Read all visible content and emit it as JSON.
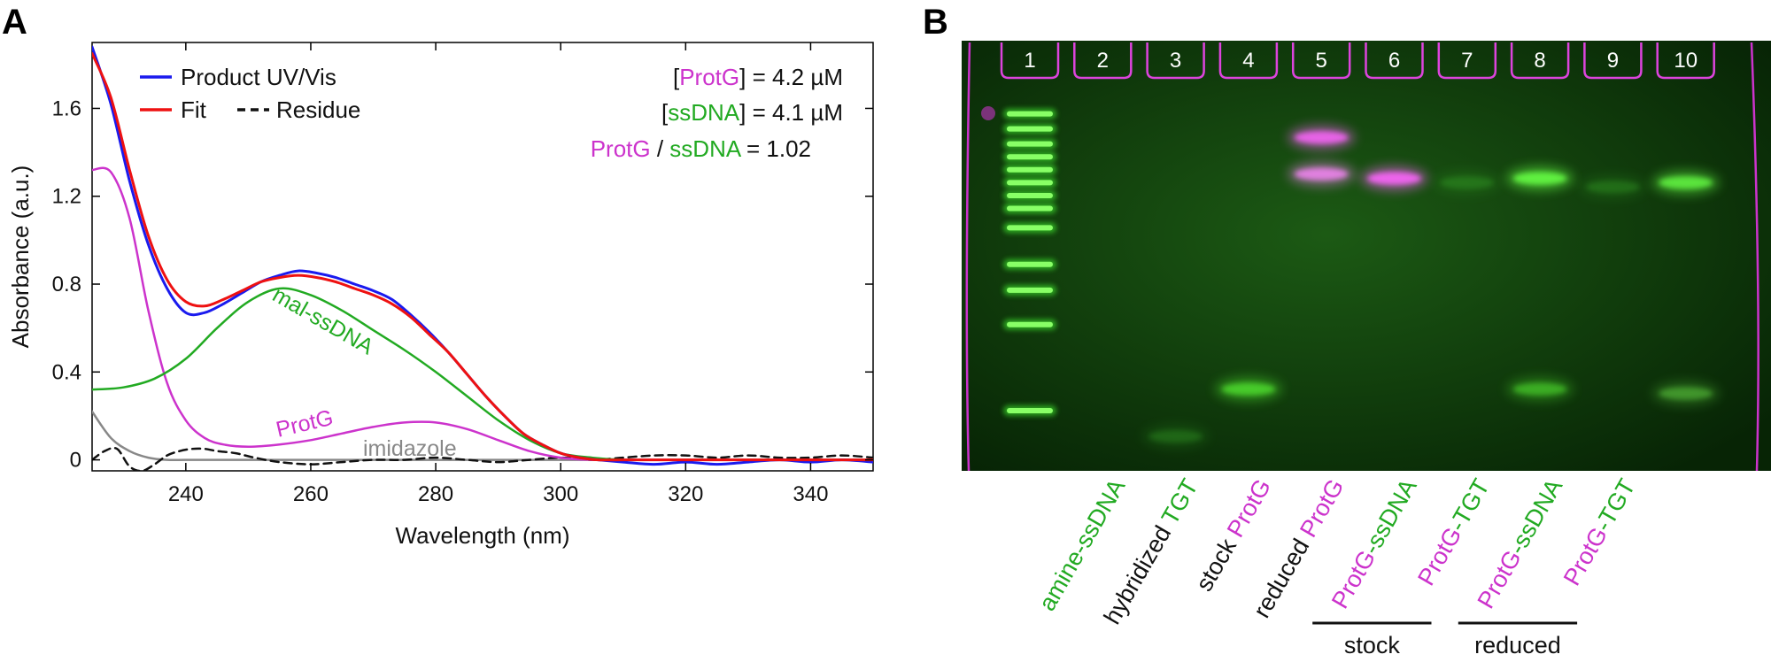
{
  "colors": {
    "magenta": "#cc33cc",
    "green": "#22aa22",
    "blue": "#1a1aee",
    "red": "#ee1111",
    "gray": "#888888",
    "black": "#111111",
    "gel_bg": "#0e3a0a",
    "band_green": "#66ff44",
    "band_magenta": "#ff66ff"
  },
  "panels": {
    "a": "A",
    "b": "B"
  },
  "chart_data": {
    "type": "line",
    "xlabel": "Wavelength (nm)",
    "ylabel": "Absorbance (a.u.)",
    "xlim": [
      225,
      350
    ],
    "ylim": [
      -0.05,
      1.9
    ],
    "xticks": [
      240,
      260,
      280,
      300,
      320,
      340
    ],
    "yticks": [
      0,
      0.4,
      0.8,
      1.2,
      1.6
    ],
    "ytick_labels": [
      "0",
      "0.4",
      "0.8",
      "1.2",
      "1.6"
    ],
    "legend": [
      {
        "label": "Product UV/Vis",
        "color": "#1a1aee",
        "dash": false
      },
      {
        "label": "Fit",
        "color": "#ee1111",
        "dash": false
      },
      {
        "label": "Residue",
        "color": "#111111",
        "dash": true
      }
    ],
    "concentrations": [
      {
        "open": "[",
        "species": "ProtG",
        "close": "] = 4.2 µM",
        "color": "#cc33cc"
      },
      {
        "open": "[",
        "species": "ssDNA",
        "close": "] = 4.1 µM",
        "color": "#22aa22"
      }
    ],
    "ratio": {
      "num": "ProtG",
      "sep": " / ",
      "den": "ssDNA",
      "value": " = 1.02"
    },
    "annotations": {
      "mal_ssdna": "mal-ssDNA",
      "protg": "ProtG",
      "imidazole": "imidazole"
    },
    "series": [
      {
        "name": "Product UV/Vis",
        "color": "#1a1aee",
        "width": 3,
        "dash": false,
        "x": [
          225,
          228,
          231,
          234,
          237,
          240,
          243,
          246,
          249,
          252,
          255,
          258,
          261,
          264,
          267,
          270,
          273,
          276,
          279,
          282,
          285,
          288,
          291,
          294,
          297,
          300,
          303,
          306,
          310,
          315,
          320,
          325,
          330,
          335,
          340,
          345,
          350
        ],
        "y": [
          1.88,
          1.62,
          1.27,
          0.98,
          0.78,
          0.67,
          0.67,
          0.71,
          0.76,
          0.81,
          0.84,
          0.86,
          0.85,
          0.83,
          0.8,
          0.77,
          0.73,
          0.66,
          0.58,
          0.49,
          0.39,
          0.29,
          0.2,
          0.12,
          0.07,
          0.03,
          0.01,
          0.0,
          -0.01,
          -0.02,
          -0.01,
          -0.02,
          -0.01,
          0.0,
          -0.01,
          0.0,
          -0.01
        ]
      },
      {
        "name": "Fit",
        "color": "#ee1111",
        "width": 3,
        "dash": false,
        "x": [
          225,
          228,
          231,
          234,
          237,
          240,
          243,
          246,
          249,
          252,
          255,
          258,
          261,
          264,
          267,
          270,
          273,
          276,
          279,
          282,
          285,
          288,
          291,
          294,
          297,
          300,
          303,
          306,
          310,
          315,
          320,
          325,
          330,
          335,
          340,
          345,
          350
        ],
        "y": [
          1.85,
          1.65,
          1.32,
          1.02,
          0.82,
          0.72,
          0.7,
          0.73,
          0.77,
          0.81,
          0.83,
          0.84,
          0.83,
          0.81,
          0.78,
          0.75,
          0.71,
          0.65,
          0.57,
          0.49,
          0.39,
          0.29,
          0.2,
          0.12,
          0.07,
          0.03,
          0.01,
          0.0,
          0.0,
          0.0,
          0.0,
          0.0,
          0.0,
          0.0,
          0.0,
          0.0,
          0.0
        ]
      },
      {
        "name": "mal-ssDNA",
        "color": "#22aa22",
        "width": 2.5,
        "dash": false,
        "x": [
          225,
          230,
          235,
          240,
          245,
          250,
          255,
          260,
          265,
          270,
          275,
          280,
          285,
          290,
          295,
          300,
          305,
          310,
          320,
          330,
          340,
          350
        ],
        "y": [
          0.32,
          0.33,
          0.37,
          0.46,
          0.6,
          0.72,
          0.78,
          0.75,
          0.68,
          0.59,
          0.5,
          0.4,
          0.29,
          0.18,
          0.09,
          0.03,
          0.01,
          0.0,
          0.0,
          0.0,
          0.0,
          0.0
        ]
      },
      {
        "name": "ProtG",
        "color": "#cc33cc",
        "width": 2.5,
        "dash": false,
        "x": [
          225,
          228,
          231,
          234,
          237,
          240,
          243,
          246,
          250,
          255,
          260,
          265,
          270,
          275,
          280,
          285,
          290,
          295,
          300,
          305,
          310,
          320,
          330,
          340,
          350
        ],
        "y": [
          1.32,
          1.31,
          1.1,
          0.68,
          0.35,
          0.18,
          0.1,
          0.07,
          0.06,
          0.07,
          0.09,
          0.12,
          0.15,
          0.17,
          0.17,
          0.14,
          0.09,
          0.04,
          0.01,
          0.0,
          0.0,
          0.0,
          0.0,
          0.0,
          0.0
        ]
      },
      {
        "name": "imidazole",
        "color": "#888888",
        "width": 2.5,
        "dash": false,
        "x": [
          225,
          228,
          231,
          234,
          237,
          240,
          245,
          250,
          260,
          280,
          300,
          320,
          340,
          350
        ],
        "y": [
          0.22,
          0.1,
          0.04,
          0.01,
          0.0,
          0.0,
          0.0,
          0.0,
          0.0,
          0.0,
          0.0,
          0.0,
          0.0,
          0.0
        ]
      },
      {
        "name": "Residue",
        "color": "#111111",
        "width": 2.5,
        "dash": true,
        "x": [
          225,
          227,
          229,
          231,
          233,
          235,
          237,
          239,
          241,
          243,
          245,
          248,
          251,
          255,
          260,
          265,
          270,
          275,
          280,
          285,
          290,
          295,
          300,
          305,
          310,
          315,
          320,
          325,
          330,
          335,
          340,
          345,
          350
        ],
        "y": [
          0.0,
          0.04,
          0.05,
          -0.03,
          -0.05,
          -0.02,
          0.02,
          0.04,
          0.05,
          0.05,
          0.04,
          0.03,
          0.01,
          -0.01,
          -0.02,
          -0.01,
          0.0,
          0.0,
          0.01,
          0.0,
          -0.01,
          0.0,
          0.01,
          0.0,
          0.01,
          0.02,
          0.02,
          0.01,
          0.02,
          0.01,
          0.01,
          0.02,
          0.01
        ]
      }
    ]
  },
  "gel": {
    "lanes": [
      "1",
      "2",
      "3",
      "4",
      "5",
      "6",
      "7",
      "8",
      "9",
      "10"
    ],
    "ladder_y": [
      0.17,
      0.205,
      0.24,
      0.27,
      0.3,
      0.33,
      0.36,
      0.39,
      0.435,
      0.52,
      0.58,
      0.66,
      0.86
    ],
    "bands": [
      {
        "lane": 5,
        "y": 0.225,
        "color": "#ff66ff",
        "strength": 0.9
      },
      {
        "lane": 5,
        "y": 0.31,
        "color": "#ff88ff",
        "strength": 0.85
      },
      {
        "lane": 6,
        "y": 0.32,
        "color": "#ff66ff",
        "strength": 0.95
      },
      {
        "lane": 8,
        "y": 0.32,
        "color": "#66ff44",
        "strength": 0.95
      },
      {
        "lane": 10,
        "y": 0.33,
        "color": "#66ff44",
        "strength": 0.85
      },
      {
        "lane": 4,
        "y": 0.81,
        "color": "#55ee33",
        "strength": 0.75
      },
      {
        "lane": 8,
        "y": 0.81,
        "color": "#55ee33",
        "strength": 0.55
      },
      {
        "lane": 10,
        "y": 0.82,
        "color": "#66dd44",
        "strength": 0.5
      },
      {
        "lane": 3,
        "y": 0.92,
        "color": "#44cc33",
        "strength": 0.25
      },
      {
        "lane": 7,
        "y": 0.33,
        "color": "#44cc33",
        "strength": 0.25
      },
      {
        "lane": 9,
        "y": 0.34,
        "color": "#44cc33",
        "strength": 0.25
      }
    ],
    "lane_labels": [
      {
        "lane": 2,
        "parts": [
          {
            "text": "amine-ssDNA",
            "color": "#22aa22"
          }
        ]
      },
      {
        "lane": 3,
        "parts": [
          {
            "text": "hybridized ",
            "color": "#111111"
          },
          {
            "text": "TGT",
            "color": "#22aa22"
          }
        ]
      },
      {
        "lane": 4,
        "parts": [
          {
            "text": "stock ",
            "color": "#111111"
          },
          {
            "text": "ProtG",
            "color": "#cc33cc"
          }
        ]
      },
      {
        "lane": 5,
        "parts": [
          {
            "text": "reduced ",
            "color": "#111111"
          },
          {
            "text": "ProtG",
            "color": "#cc33cc"
          }
        ]
      },
      {
        "lane": 6,
        "parts": [
          {
            "text": "ProtG",
            "color": "#cc33cc"
          },
          {
            "text": "-ssDNA",
            "color": "#22aa22"
          }
        ]
      },
      {
        "lane": 7,
        "parts": [
          {
            "text": "ProtG",
            "color": "#cc33cc"
          },
          {
            "text": "-TGT",
            "color": "#22aa22"
          }
        ]
      },
      {
        "lane": 8,
        "parts": [
          {
            "text": "ProtG",
            "color": "#cc33cc"
          },
          {
            "text": "-ssDNA",
            "color": "#22aa22"
          }
        ]
      },
      {
        "lane": 9,
        "parts": [
          {
            "text": "ProtG",
            "color": "#cc33cc"
          },
          {
            "text": "-TGT",
            "color": "#22aa22"
          }
        ]
      }
    ],
    "groups": [
      {
        "label": "stock",
        "from": 5,
        "to": 6
      },
      {
        "label": "reduced",
        "from": 7,
        "to": 8
      }
    ]
  }
}
